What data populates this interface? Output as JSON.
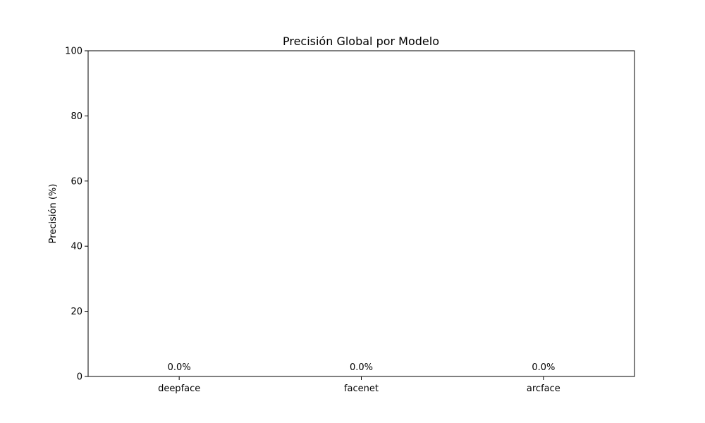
{
  "chart_data": {
    "type": "bar",
    "title": "Precisión Global por Modelo",
    "xlabel": "",
    "ylabel": "Precisión (%)",
    "categories": [
      "deepface",
      "facenet",
      "arcface"
    ],
    "values": [
      0.0,
      0.0,
      0.0
    ],
    "data_labels": [
      "0.0%",
      "0.0%",
      "0.0%"
    ],
    "ylim": [
      0,
      100
    ],
    "yticks": [
      0,
      20,
      40,
      60,
      80,
      100
    ],
    "ytick_labels": [
      "0",
      "20",
      "40",
      "60",
      "80",
      "100"
    ],
    "grid": false,
    "bar_color": "#1f77b4"
  }
}
